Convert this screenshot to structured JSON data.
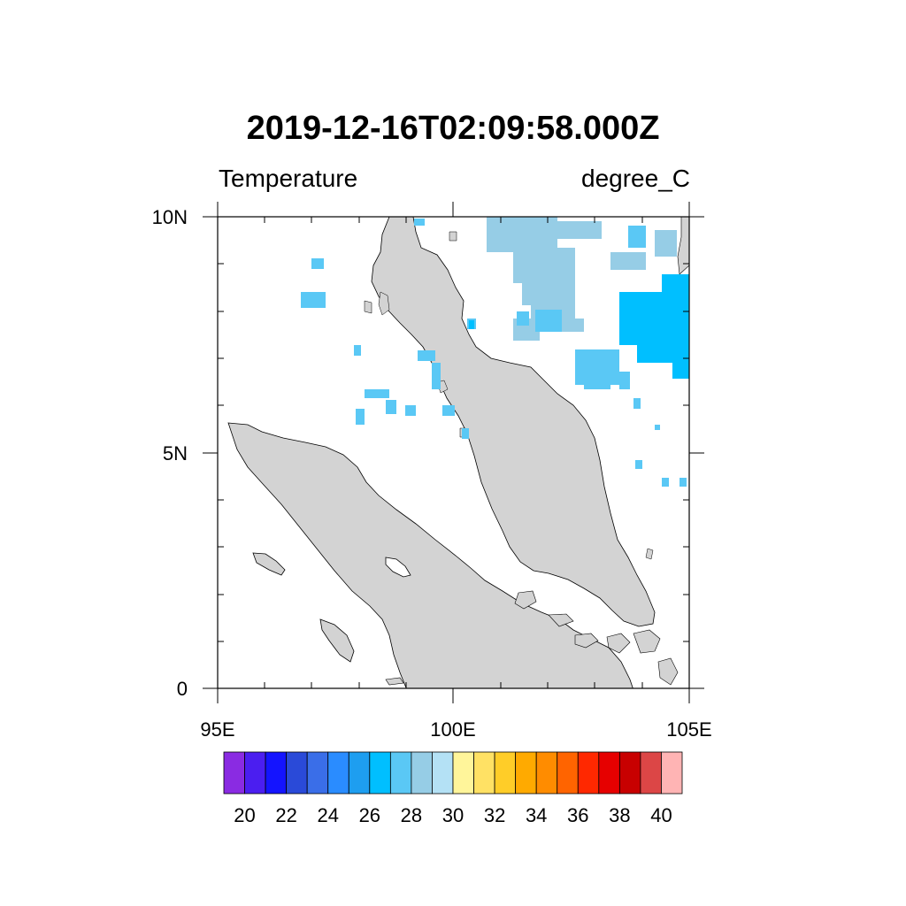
{
  "title": "2019-12-16T02:09:58.000Z",
  "subtitle_left": "Temperature",
  "subtitle_right": "degree_C",
  "map": {
    "lon_range": [
      95,
      105
    ],
    "lat_range": [
      0,
      10
    ],
    "x_tick_labels": [
      "95E",
      "100E",
      "105E"
    ],
    "y_tick_labels": [
      "0",
      "5N",
      "10N"
    ],
    "land_color": "#d3d3d3",
    "ocean_color": "#ffffff"
  },
  "colorbar": {
    "colors": [
      "#8a2be2",
      "#4b1ef0",
      "#1414ff",
      "#2a4ad8",
      "#3a6ee8",
      "#2a8cff",
      "#1e9ef0",
      "#00bfff",
      "#5ac8f5",
      "#96cde6",
      "#b4e1f5",
      "#fff59a",
      "#ffe164",
      "#ffcd28",
      "#ffaa00",
      "#ff8c00",
      "#ff6400",
      "#ff2800",
      "#e60000",
      "#c80000",
      "#dc4646",
      "#ffb4b4"
    ],
    "labels": [
      "20",
      "22",
      "24",
      "26",
      "28",
      "30",
      "32",
      "34",
      "36",
      "38",
      "40"
    ]
  },
  "cloud_colors": {
    "light": "#96cde6",
    "medium": "#5ac8f5",
    "bright": "#00bfff"
  }
}
